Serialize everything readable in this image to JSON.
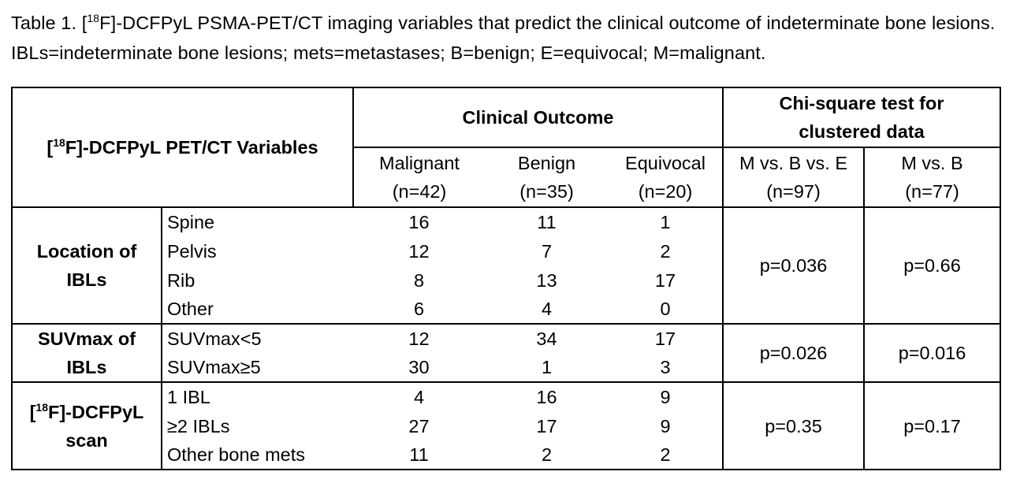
{
  "caption": {
    "prefix": "Table 1. [",
    "sup": "18",
    "suffix": "F]-DCFPyL PSMA-PET/CT imaging variables that predict the clinical outcome of indeterminate bone lesions. IBLs=indeterminate bone lesions; mets=metastases; B=benign; E=equivocal; M=malignant."
  },
  "header": {
    "variables": {
      "prefix": "[",
      "sup": "18",
      "suffix": "F]-DCFPyL PET/CT Variables"
    },
    "clinical_outcome": "Clinical Outcome",
    "chi_square": "Chi-square test for clustered data",
    "columns": [
      {
        "line1": "Malignant",
        "line2": "(n=42)"
      },
      {
        "line1": "Benign",
        "line2": "(n=35)"
      },
      {
        "line1": "Equivocal",
        "line2": "(n=20)"
      },
      {
        "line1": "M vs. B vs. E",
        "line2": "(n=97)"
      },
      {
        "line1": "M vs. B",
        "line2": "(n=77)"
      }
    ]
  },
  "groups": [
    {
      "label_line1": "Location of",
      "label_line2": "IBLs",
      "p_mbe": "p=0.036",
      "p_mb": "p=0.66",
      "rows": [
        {
          "variable": "Spine",
          "malignant": "16",
          "benign": "11",
          "equivocal": "1"
        },
        {
          "variable": "Pelvis",
          "malignant": "12",
          "benign": "7",
          "equivocal": "2"
        },
        {
          "variable": "Rib",
          "malignant": "8",
          "benign": "13",
          "equivocal": "17"
        },
        {
          "variable": "Other",
          "malignant": "6",
          "benign": "4",
          "equivocal": "0"
        }
      ]
    },
    {
      "label_line1": "SUVmax of",
      "label_line2": "IBLs",
      "p_mbe": "p=0.026",
      "p_mb": "p=0.016",
      "rows": [
        {
          "variable": "SUVmax<5",
          "malignant": "12",
          "benign": "34",
          "equivocal": "17"
        },
        {
          "variable": "SUVmax≥5",
          "malignant": "30",
          "benign": "1",
          "equivocal": "3"
        }
      ]
    },
    {
      "label_prefix": "[",
      "label_sup": "18",
      "label_suffix": "F]-DCFPyL",
      "label_line2": "scan",
      "p_mbe": "p=0.35",
      "p_mb": "p=0.17",
      "rows": [
        {
          "variable": "1 IBL",
          "malignant": "4",
          "benign": "16",
          "equivocal": "9"
        },
        {
          "variable": "≥2 IBLs",
          "malignant": "27",
          "benign": "17",
          "equivocal": "9"
        },
        {
          "variable": "Other bone mets",
          "malignant": "11",
          "benign": "2",
          "equivocal": "2"
        }
      ]
    }
  ]
}
